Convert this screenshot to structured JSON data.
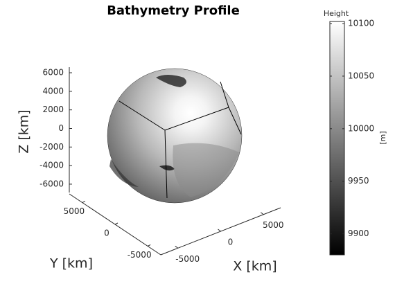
{
  "chart_data": {
    "type": "surface",
    "title": "Bathymetry Profile",
    "xlabel": "X [km]",
    "ylabel": "Y [km]",
    "zlabel": "Z [km]",
    "xlim": [
      -7000,
      7000
    ],
    "xticks": [
      -5000,
      0,
      5000
    ],
    "ylim": [
      -7000,
      7000
    ],
    "yticks": [
      -5000,
      0,
      5000
    ],
    "zlim": [
      -6900,
      6600
    ],
    "zticks": [
      -6000,
      -4000,
      -2000,
      0,
      2000,
      4000,
      6000
    ],
    "colormap": "gray",
    "colorbar": {
      "title": "Height",
      "label": "[m]",
      "clim": [
        9880,
        10102
      ],
      "ticks": [
        9900,
        9950,
        10000,
        10050,
        10100
      ]
    }
  }
}
